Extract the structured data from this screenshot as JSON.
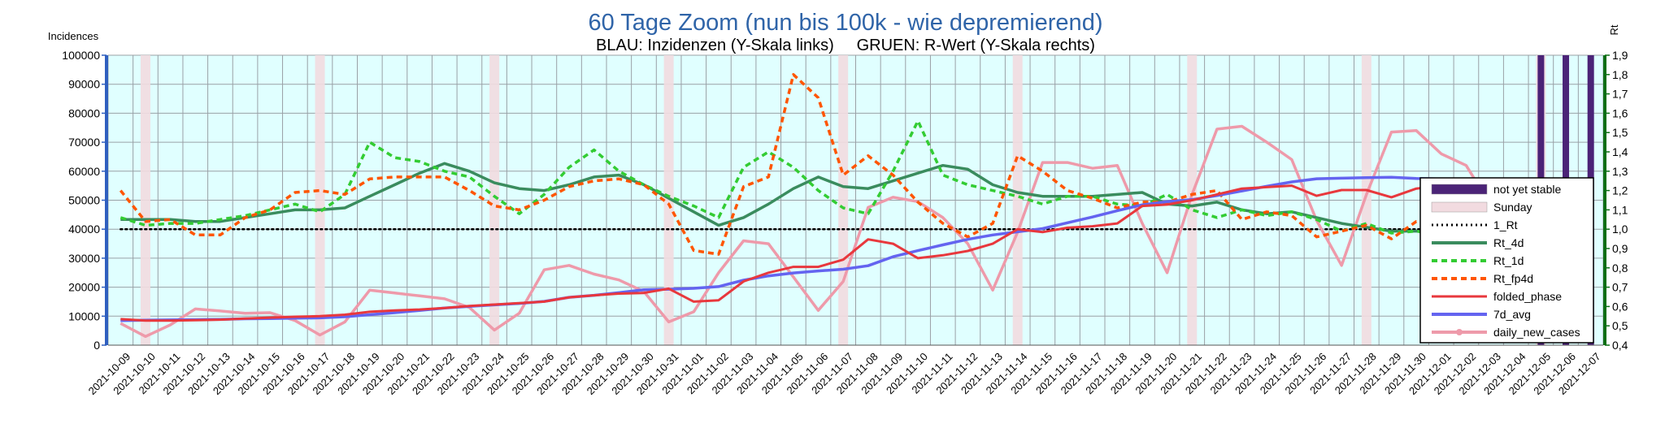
{
  "chart_data": {
    "type": "line",
    "title": "60 Tage Zoom  (nun bis 100k - wie depremierend)",
    "subtitle": "BLAU: Inzidenzen (Y-Skala links)     GRUEN: R-Wert (Y-Skala rechts)",
    "ylabel_left": "Incidences",
    "ylabel_right": "Rt",
    "ylim_left": [
      0,
      100000
    ],
    "ylim_right": [
      0.4,
      1.9
    ],
    "yticks_left": [
      "0",
      "10000",
      "20000",
      "30000",
      "40000",
      "50000",
      "60000",
      "70000",
      "80000",
      "90000",
      "100000"
    ],
    "yticks_right": [
      "0,4",
      "0,5",
      "0,6",
      "0,7",
      "0,8",
      "0,9",
      "1,0",
      "1,1",
      "1,2",
      "1,3",
      "1,4",
      "1,5",
      "1,6",
      "1,7",
      "1,8",
      "1,9"
    ],
    "grid": true,
    "legend_position": "right",
    "colors": {
      "plot_background": "#e0ffff",
      "grid": "#9aa0a6",
      "left_axis": "#2f5fbf",
      "right_axis": "#0a6e14",
      "title": "#2f64a8",
      "not_yet_stable": "#4b2377",
      "sunday": "#f2dbe0",
      "one_rt": "#000000",
      "rt_4d": "#3a8c5e",
      "rt_1d": "#33cc33",
      "rt_fp4d": "#ff5500",
      "folded_phase": "#e8383d",
      "avg_7d": "#6464f0",
      "daily_new_cases": "#ee9aaa"
    },
    "categories": [
      "2021-10-09",
      "2021-10-10",
      "2021-10-11",
      "2021-10-12",
      "2021-10-13",
      "2021-10-14",
      "2021-10-15",
      "2021-10-16",
      "2021-10-17",
      "2021-10-18",
      "2021-10-19",
      "2021-10-20",
      "2021-10-21",
      "2021-10-22",
      "2021-10-23",
      "2021-10-24",
      "2021-10-25",
      "2021-10-26",
      "2021-10-27",
      "2021-10-28",
      "2021-10-29",
      "2021-10-30",
      "2021-10-31",
      "2021-11-01",
      "2021-11-02",
      "2021-11-03",
      "2021-11-04",
      "2021-11-05",
      "2021-11-06",
      "2021-11-07",
      "2021-11-08",
      "2021-11-09",
      "2021-11-10",
      "2021-11-11",
      "2021-11-12",
      "2021-11-13",
      "2021-11-14",
      "2021-11-15",
      "2021-11-16",
      "2021-11-17",
      "2021-11-18",
      "2021-11-19",
      "2021-11-20",
      "2021-11-21",
      "2021-11-22",
      "2021-11-23",
      "2021-11-24",
      "2021-11-25",
      "2021-11-26",
      "2021-11-27",
      "2021-11-28",
      "2021-11-29",
      "2021-11-30",
      "2021-12-01",
      "2021-12-02",
      "2021-12-03",
      "2021-12-04",
      "2021-12-05",
      "2021-12-06",
      "2021-12-07"
    ],
    "sundays": [
      "2021-10-10",
      "2021-10-17",
      "2021-10-24",
      "2021-10-31",
      "2021-11-07",
      "2021-11-14",
      "2021-11-21",
      "2021-11-28",
      "2021-12-05"
    ],
    "not_yet_stable": [
      "2021-12-05",
      "2021-12-06",
      "2021-12-07"
    ],
    "series": [
      {
        "name": "not yet stable",
        "kind": "band"
      },
      {
        "name": "Sunday",
        "kind": "band"
      },
      {
        "name": "1_Rt",
        "axis": "right",
        "style": "dotted",
        "values": [
          1.0,
          1.0,
          1.0,
          1.0,
          1.0,
          1.0,
          1.0,
          1.0,
          1.0,
          1.0,
          1.0,
          1.0,
          1.0,
          1.0,
          1.0,
          1.0,
          1.0,
          1.0,
          1.0,
          1.0,
          1.0,
          1.0,
          1.0,
          1.0,
          1.0,
          1.0,
          1.0,
          1.0,
          1.0,
          1.0,
          1.0,
          1.0,
          1.0,
          1.0,
          1.0,
          1.0,
          1.0,
          1.0,
          1.0,
          1.0,
          1.0,
          1.0,
          1.0,
          1.0,
          1.0,
          1.0,
          1.0,
          1.0,
          1.0,
          1.0,
          1.0,
          1.0,
          1.0,
          1.0,
          1.0,
          1.0,
          1.0,
          1.0,
          1.0,
          1.0
        ]
      },
      {
        "name": "Rt_4d",
        "axis": "right",
        "style": "solid",
        "values": [
          1.05,
          1.05,
          1.05,
          1.04,
          1.04,
          1.06,
          1.08,
          1.1,
          1.1,
          1.11,
          1.17,
          1.23,
          1.29,
          1.34,
          1.3,
          1.24,
          1.21,
          1.2,
          1.23,
          1.27,
          1.28,
          1.23,
          1.16,
          1.09,
          1.02,
          1.06,
          1.13,
          1.21,
          1.27,
          1.22,
          1.21,
          1.25,
          1.29,
          1.33,
          1.31,
          1.23,
          1.19,
          1.17,
          1.17,
          1.17,
          1.18,
          1.19,
          1.13,
          1.12,
          1.14,
          1.1,
          1.08,
          1.09,
          1.06,
          1.03,
          1.01,
          0.99,
          0.99,
          0.98,
          0.98,
          0.97,
          0.97,
          0.96,
          0.96,
          0.92
        ]
      },
      {
        "name": "Rt_1d",
        "axis": "right",
        "style": "dashed",
        "values": [
          1.06,
          1.02,
          1.03,
          1.03,
          1.05,
          1.07,
          1.1,
          1.13,
          1.09,
          1.18,
          1.45,
          1.37,
          1.35,
          1.3,
          1.27,
          1.17,
          1.08,
          1.18,
          1.32,
          1.41,
          1.3,
          1.23,
          1.17,
          1.12,
          1.06,
          1.32,
          1.4,
          1.32,
          1.2,
          1.11,
          1.08,
          1.3,
          1.56,
          1.28,
          1.23,
          1.2,
          1.17,
          1.13,
          1.17,
          1.17,
          1.13,
          1.12,
          1.18,
          1.1,
          1.06,
          1.1,
          1.07,
          1.09,
          1.05,
          0.99,
          1.03,
          0.98,
          0.99,
          0.97,
          0.94,
          0.96,
          0.98,
          0.97,
          0.96,
          0.8
        ]
      },
      {
        "name": "Rt_fp4d",
        "axis": "right",
        "style": "dashed",
        "values": [
          1.2,
          1.04,
          1.05,
          0.97,
          0.97,
          1.06,
          1.1,
          1.19,
          1.2,
          1.18,
          1.26,
          1.27,
          1.27,
          1.27,
          1.2,
          1.12,
          1.1,
          1.15,
          1.22,
          1.25,
          1.26,
          1.23,
          1.13,
          0.89,
          0.87,
          1.22,
          1.27,
          1.8,
          1.68,
          1.28,
          1.38,
          1.28,
          1.14,
          1.03,
          0.96,
          1.03,
          1.38,
          1.3,
          1.2,
          1.16,
          1.11,
          1.14,
          1.14,
          1.18,
          1.2,
          1.05,
          1.09,
          1.07,
          0.96,
          0.99,
          1.02,
          0.95,
          1.04,
          1.02,
          1.02,
          1.05,
          1.0,
          0.95,
          0.88,
          0.73
        ]
      },
      {
        "name": "folded_phase",
        "axis": "left",
        "style": "solid",
        "values": [
          9000,
          8500,
          8500,
          8600,
          8800,
          9200,
          9500,
          9800,
          10000,
          10500,
          11500,
          12000,
          12300,
          12800,
          13500,
          14000,
          14500,
          15000,
          16500,
          17200,
          17800,
          18000,
          19500,
          15000,
          15500,
          22000,
          25000,
          27000,
          27000,
          29500,
          36500,
          35000,
          30000,
          31000,
          32500,
          35000,
          40000,
          39000,
          40500,
          41000,
          42000,
          48000,
          48500,
          50000,
          52000,
          54000,
          54500,
          55000,
          51500,
          53500,
          53500,
          51000,
          54000,
          55000,
          54500,
          55500,
          54000,
          51500,
          52000,
          38000
        ]
      },
      {
        "name": "7d_avg",
        "axis": "left",
        "style": "solid",
        "values": [
          8500,
          8600,
          8700,
          8800,
          8900,
          9100,
          9200,
          9300,
          9400,
          9800,
          10500,
          11200,
          12000,
          12800,
          13400,
          13900,
          14400,
          15100,
          16500,
          17200,
          18100,
          19100,
          19300,
          19600,
          20200,
          22400,
          23900,
          24900,
          25600,
          26200,
          27400,
          30500,
          32600,
          34600,
          36500,
          38000,
          39100,
          40200,
          42200,
          44200,
          46400,
          48400,
          49500,
          50200,
          51600,
          53200,
          54800,
          56300,
          57400,
          57600,
          57800,
          57900,
          57500,
          57300,
          57000,
          56500,
          56000,
          55500,
          55000,
          51500
        ]
      },
      {
        "name": "daily_new_cases",
        "axis": "left",
        "style": "solid-marker",
        "values": [
          7500,
          3000,
          7000,
          12500,
          11800,
          11000,
          11200,
          8500,
          3500,
          8000,
          19000,
          18000,
          17000,
          16000,
          13000,
          5200,
          11000,
          26000,
          27500,
          24500,
          22500,
          18500,
          8000,
          11500,
          25000,
          36000,
          35000,
          23500,
          12000,
          22000,
          47500,
          51000,
          49500,
          44000,
          35000,
          19000,
          39000,
          63000,
          63000,
          61000,
          62000,
          42000,
          25000,
          52000,
          74500,
          75500,
          70000,
          64000,
          43000,
          27500,
          52000,
          73500,
          74000,
          66000,
          62000,
          48000,
          22000,
          38000,
          48000,
          50000
        ]
      }
    ]
  }
}
